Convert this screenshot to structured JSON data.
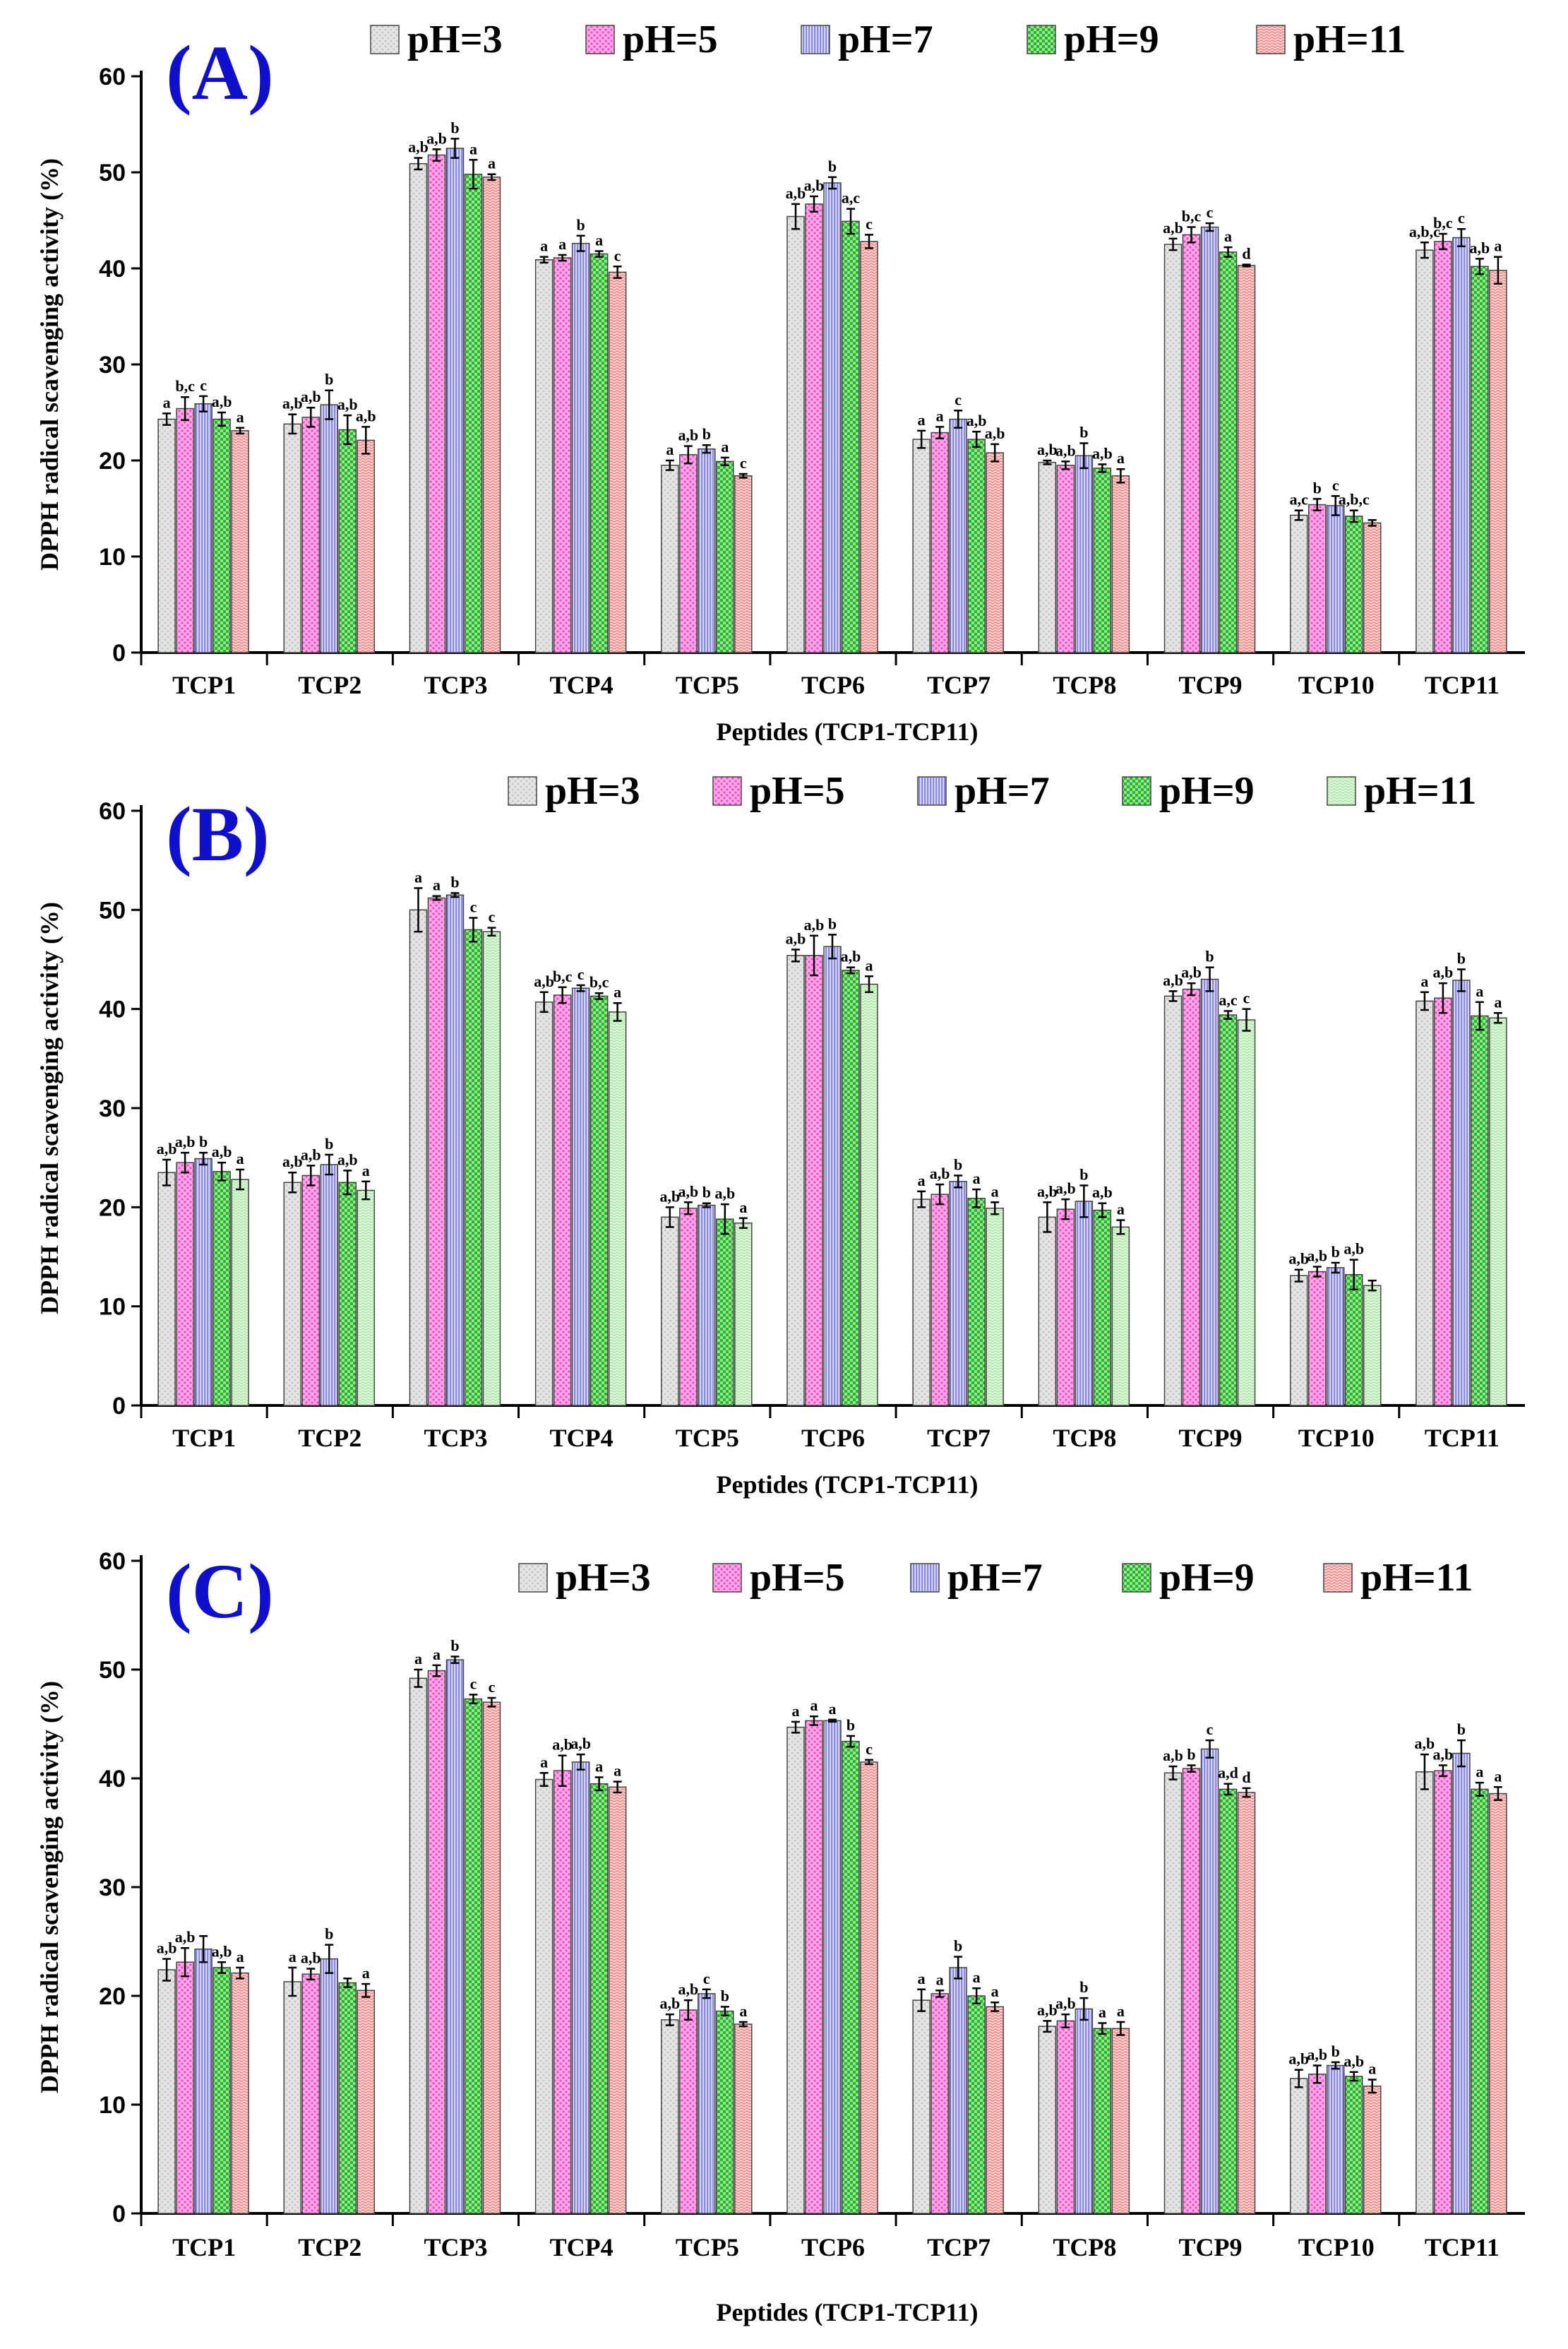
{
  "series_styles": [
    {
      "key": "pH3",
      "color": "#c8c8c8",
      "pattern": "dots-grey"
    },
    {
      "key": "pH5",
      "color": "#ff44cc",
      "pattern": "dots-pink"
    },
    {
      "key": "pH7",
      "color": "#8a8ae6",
      "pattern": "vlines-blue"
    },
    {
      "key": "pH9",
      "color": "#27b827",
      "pattern": "checks-green"
    },
    {
      "key": "pH11",
      "color": "#f08080",
      "pattern": "waves-salmon"
    }
  ],
  "panel_b_pH11_color": "#a8e6a0",
  "chart_data": [
    {
      "type": "bar",
      "panel_label": "(A)",
      "xlabel": "Peptides (TCP1-TCP11)",
      "ylabel": "DPPH radical scavenging activity (%)",
      "ylim": [
        0,
        60
      ],
      "yticks": [
        "0",
        "10",
        "20",
        "30",
        "40",
        "50",
        "60"
      ],
      "legend_position": "top",
      "categories": [
        "TCP1",
        "TCP2",
        "TCP3",
        "TCP4",
        "TCP5",
        "TCP6",
        "TCP7",
        "TCP8",
        "TCP9",
        "TCP10",
        "TCP11"
      ],
      "series": [
        {
          "name": "pH=3",
          "values": [
            24.3,
            23.8,
            50.9,
            40.9,
            19.5,
            45.4,
            22.2,
            19.8,
            42.5,
            14.3,
            41.9
          ],
          "errors": [
            0.6,
            1.0,
            0.6,
            0.3,
            0.5,
            1.3,
            0.9,
            0.2,
            0.6,
            0.5,
            0.8
          ],
          "labels": [
            "a",
            "a,b",
            "a,b",
            "a",
            "a",
            "a,b",
            "a",
            "a,b",
            "a,b",
            "a,c",
            "a,b,c"
          ]
        },
        {
          "name": "pH=5",
          "values": [
            25.4,
            24.5,
            51.8,
            41.1,
            20.6,
            46.7,
            22.9,
            19.5,
            43.5,
            15.4,
            42.8
          ],
          "errors": [
            1.2,
            1.0,
            0.6,
            0.3,
            0.9,
            0.8,
            0.6,
            0.4,
            0.8,
            0.6,
            0.8
          ],
          "labels": [
            "b,c",
            "a,b",
            "a,b",
            "a",
            "a,b",
            "a,b",
            "a",
            "a,b",
            "b,c",
            "b",
            "b,c"
          ]
        },
        {
          "name": "pH=7",
          "values": [
            25.9,
            25.8,
            52.5,
            42.6,
            21.2,
            48.9,
            24.3,
            20.5,
            44.3,
            15.3,
            43.2
          ],
          "errors": [
            0.8,
            1.5,
            1.0,
            0.8,
            0.4,
            0.6,
            0.9,
            1.3,
            0.4,
            1.0,
            0.9
          ],
          "labels": [
            "c",
            "b",
            "b",
            "b",
            "b",
            "b",
            "c",
            "b",
            "c",
            "c",
            "c"
          ]
        },
        {
          "name": "pH=9",
          "values": [
            24.3,
            23.2,
            49.8,
            41.5,
            19.9,
            44.9,
            22.2,
            19.2,
            41.7,
            14.2,
            40.2
          ],
          "errors": [
            0.7,
            1.5,
            1.5,
            0.3,
            0.4,
            1.3,
            0.8,
            0.4,
            0.5,
            0.6,
            0.8
          ],
          "labels": [
            "a,b",
            "a,b",
            "a",
            "a",
            "a",
            "a,c",
            "a,b",
            "a,b",
            "a",
            "a,b,c",
            "a,b"
          ]
        },
        {
          "name": "pH=11",
          "values": [
            23.1,
            22.1,
            49.5,
            39.6,
            18.4,
            42.8,
            20.8,
            18.4,
            40.3,
            13.5,
            39.8
          ],
          "errors": [
            0.3,
            1.4,
            0.3,
            0.6,
            0.2,
            0.7,
            0.9,
            0.7,
            0.1,
            0.3,
            1.4
          ],
          "labels": [
            "a",
            "a,b",
            "a",
            "c",
            "c",
            "c",
            "a,b",
            "a",
            "d",
            "",
            "a"
          ]
        }
      ]
    },
    {
      "type": "bar",
      "panel_label": "(B)",
      "xlabel": "Peptides (TCP1-TCP11)",
      "ylabel": "DPPH radical scavenging activity (%)",
      "ylim": [
        0,
        60
      ],
      "yticks": [
        "0",
        "10",
        "20",
        "30",
        "40",
        "50",
        "60"
      ],
      "legend_position": "top",
      "categories": [
        "TCP1",
        "TCP2",
        "TCP3",
        "TCP4",
        "TCP5",
        "TCP6",
        "TCP7",
        "TCP8",
        "TCP9",
        "TCP10",
        "TCP11"
      ],
      "series": [
        {
          "name": "pH=3",
          "values": [
            23.5,
            22.5,
            50.0,
            40.7,
            19.0,
            45.4,
            20.8,
            19.0,
            41.3,
            13.1,
            40.8
          ],
          "errors": [
            1.3,
            1.0,
            2.2,
            1.0,
            1.0,
            0.6,
            0.8,
            1.5,
            0.5,
            0.6,
            0.9
          ],
          "labels": [
            "a,b",
            "a,b",
            "a",
            "a,b",
            "a,b",
            "a,b",
            "a",
            "a,b",
            "a,b",
            "a,b",
            "a"
          ]
        },
        {
          "name": "pH=5",
          "values": [
            24.5,
            23.2,
            51.2,
            41.4,
            19.9,
            45.4,
            21.3,
            19.8,
            42.0,
            13.5,
            41.1
          ],
          "errors": [
            1.0,
            1.0,
            0.2,
            0.8,
            0.6,
            2.0,
            1.0,
            1.0,
            0.6,
            0.5,
            1.5
          ],
          "labels": [
            "a,b",
            "a,b",
            "a",
            "b,c",
            "a,b",
            "a,b",
            "a,b",
            "a,b",
            "a,b",
            "a,b",
            "a,b"
          ]
        },
        {
          "name": "pH=7",
          "values": [
            24.9,
            24.3,
            51.5,
            42.1,
            20.2,
            46.3,
            22.6,
            20.6,
            43.0,
            13.9,
            42.9
          ],
          "errors": [
            0.6,
            1.0,
            0.2,
            0.3,
            0.2,
            1.2,
            0.6,
            1.6,
            1.2,
            0.5,
            1.1
          ],
          "labels": [
            "b",
            "b",
            "b",
            "c",
            "b",
            "b",
            "b",
            "b",
            "b",
            "b",
            "b"
          ]
        },
        {
          "name": "pH=9",
          "values": [
            23.6,
            22.5,
            48.0,
            41.3,
            18.8,
            43.9,
            20.9,
            19.7,
            39.4,
            13.2,
            39.3
          ],
          "errors": [
            0.9,
            1.2,
            1.2,
            0.3,
            1.5,
            0.3,
            0.9,
            0.7,
            0.4,
            1.5,
            1.4
          ],
          "labels": [
            "a,b",
            "a,b",
            "c",
            "b,c",
            "a,b",
            "a,b",
            "a",
            "a,b",
            "a,c",
            "a,b",
            "a"
          ]
        },
        {
          "name": "pH=11",
          "values": [
            22.8,
            21.7,
            47.8,
            39.7,
            18.4,
            42.5,
            19.9,
            18.0,
            38.9,
            12.1,
            39.1
          ],
          "errors": [
            1.0,
            0.9,
            0.4,
            0.9,
            0.5,
            0.8,
            0.6,
            0.7,
            1.1,
            0.5,
            0.5
          ],
          "labels": [
            "a",
            "a",
            "c",
            "a",
            "a",
            "a",
            "a",
            "a",
            "c",
            "",
            "a"
          ]
        }
      ]
    },
    {
      "type": "bar",
      "panel_label": "(C)",
      "xlabel": "Peptides (TCP1-TCP11)",
      "ylabel": "DPPH radical scavenging activity (%)",
      "ylim": [
        0,
        60
      ],
      "yticks": [
        "0",
        "10",
        "20",
        "30",
        "40",
        "50",
        "60"
      ],
      "legend_position": "top",
      "categories": [
        "TCP1",
        "TCP2",
        "TCP3",
        "TCP4",
        "TCP5",
        "TCP6",
        "TCP7",
        "TCP8",
        "TCP9",
        "TCP10",
        "TCP11"
      ],
      "series": [
        {
          "name": "pH=3",
          "values": [
            22.4,
            21.3,
            49.2,
            39.9,
            17.8,
            44.7,
            19.6,
            17.2,
            40.5,
            12.4,
            40.6
          ],
          "errors": [
            1.0,
            1.3,
            0.8,
            0.6,
            0.5,
            0.5,
            1.0,
            0.5,
            0.6,
            0.8,
            1.6
          ],
          "labels": [
            "a,b",
            "a",
            "a",
            "a",
            "a,b",
            "a",
            "a",
            "a,b",
            "a,b",
            "a,b",
            "a,b"
          ]
        },
        {
          "name": "pH=5",
          "values": [
            23.1,
            22.0,
            49.9,
            40.7,
            18.7,
            45.3,
            20.2,
            17.7,
            40.9,
            12.8,
            40.7
          ],
          "errors": [
            1.3,
            0.5,
            0.5,
            1.4,
            0.9,
            0.4,
            0.3,
            0.6,
            0.3,
            0.8,
            0.5
          ],
          "labels": [
            "a,b",
            "a,b",
            "a",
            "a,b",
            "a,b",
            "a",
            "a",
            "a,b",
            "b",
            "a,b",
            "a,b"
          ]
        },
        {
          "name": "pH=7",
          "values": [
            24.3,
            23.4,
            50.9,
            41.5,
            20.2,
            45.3,
            22.6,
            18.8,
            42.7,
            13.6,
            42.3
          ],
          "errors": [
            1.2,
            1.3,
            0.3,
            0.7,
            0.4,
            0.1,
            1.0,
            1.0,
            0.8,
            0.3,
            1.2
          ],
          "labels": [
            "",
            "b",
            "b",
            "a,b",
            "c",
            "a",
            "b",
            "b",
            "c",
            "b",
            "b"
          ]
        },
        {
          "name": "pH=9",
          "values": [
            22.6,
            21.2,
            47.3,
            39.5,
            18.6,
            43.4,
            20.0,
            17.0,
            39.0,
            12.6,
            39.0
          ],
          "errors": [
            0.5,
            0.4,
            0.4,
            0.6,
            0.4,
            0.5,
            0.7,
            0.5,
            0.5,
            0.4,
            0.6
          ],
          "labels": [
            "a,b",
            "",
            "c",
            "a",
            "b",
            "b",
            "a",
            "a",
            "a,d",
            "a,b",
            "a"
          ]
        },
        {
          "name": "pH=11",
          "values": [
            22.1,
            20.5,
            47.0,
            39.2,
            17.4,
            41.5,
            19.0,
            17.0,
            38.7,
            11.7,
            38.6
          ],
          "errors": [
            0.5,
            0.6,
            0.4,
            0.5,
            0.2,
            0.2,
            0.4,
            0.6,
            0.4,
            0.6,
            0.6
          ],
          "labels": [
            "a",
            "a",
            "c",
            "a",
            "a",
            "c",
            "a",
            "a",
            "d",
            "a",
            "a"
          ]
        }
      ]
    }
  ]
}
